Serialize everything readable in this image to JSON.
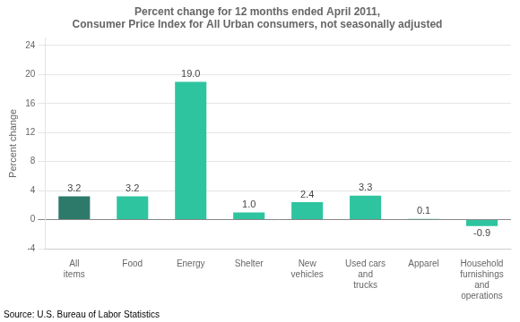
{
  "chart_data": {
    "type": "bar",
    "title": "Percent change for 12 months ended April 2011,\nConsumer Price Index for All Urban consumers, not seasonally adjusted",
    "categories": [
      "All\nitems",
      "Food",
      "Energy",
      "Shelter",
      "New\nvehicles",
      "Used cars\nand\ntrucks",
      "Apparel",
      "Household\nfurnishings\nand\noperations"
    ],
    "values": [
      3.2,
      3.2,
      19.0,
      1.0,
      2.4,
      3.3,
      0.1,
      -0.9
    ],
    "value_labels": [
      "3.2",
      "3.2",
      "19.0",
      "1.0",
      "2.4",
      "3.3",
      "0.1",
      "-0.9"
    ],
    "colors": [
      "#2d7a6a",
      "#2ec4a0",
      "#2ec4a0",
      "#2ec4a0",
      "#2ec4a0",
      "#2ec4a0",
      "#2ec4a0",
      "#2ec4a0"
    ],
    "ylabel": "Percent change",
    "ylim": [
      -4,
      25
    ],
    "yticks": [
      -4,
      0,
      4,
      8,
      12,
      16,
      20,
      24
    ],
    "grid": true,
    "data_labels": true,
    "source": "Source: U.S. Bureau of Labor Statistics"
  }
}
